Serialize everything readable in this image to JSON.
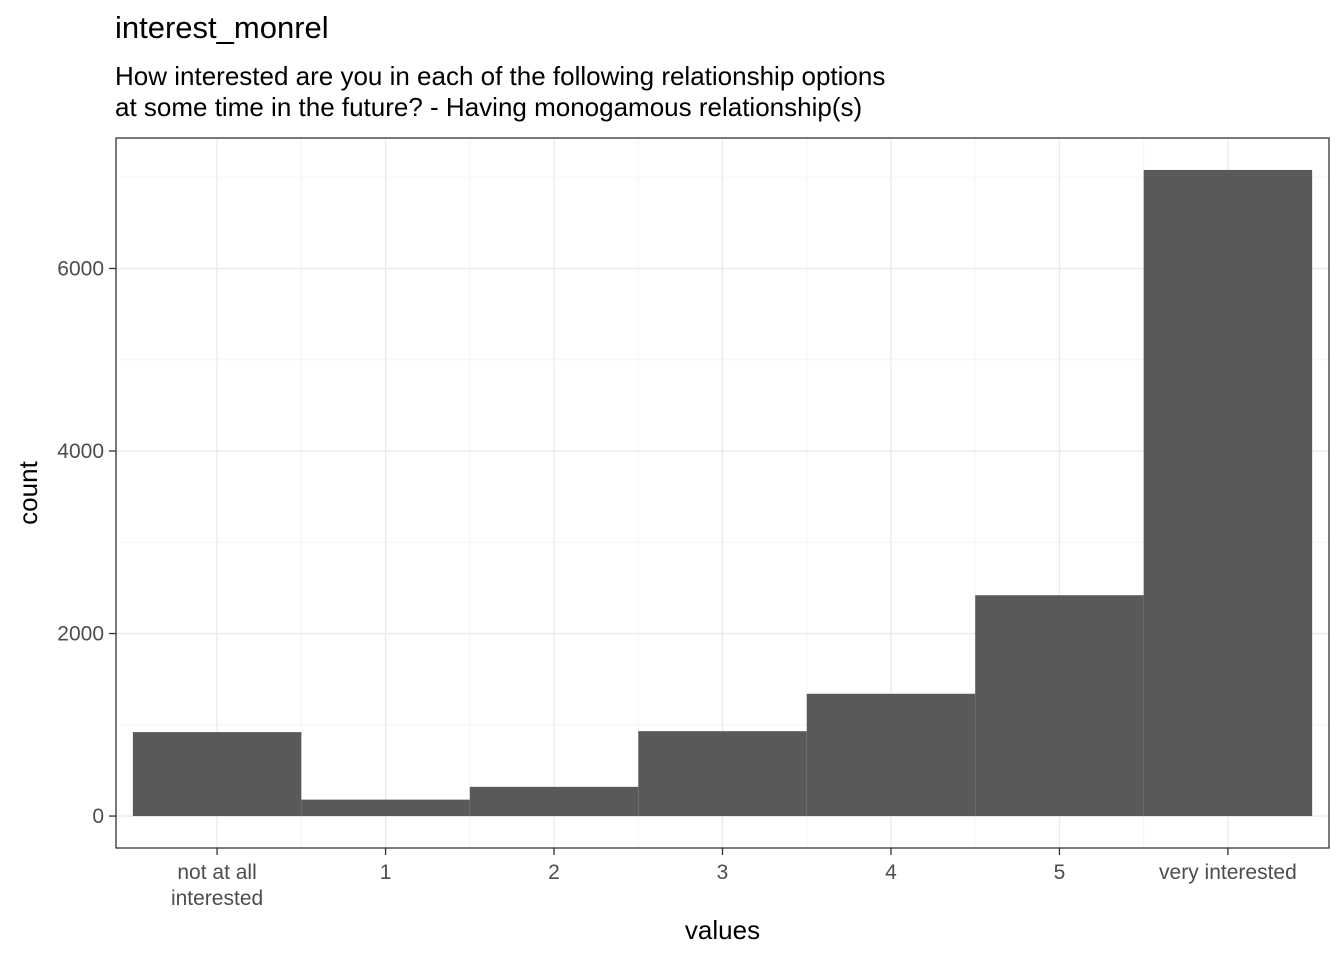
{
  "chart_data": {
    "type": "bar",
    "title": "interest_monrel",
    "subtitle_lines": [
      "How interested are you in each of the following relationship options",
      "at some time in the future? - Having monogamous relationship(s)"
    ],
    "xlabel": "values",
    "ylabel": "count",
    "categories": [
      [
        "not at all",
        "interested"
      ],
      [
        "1"
      ],
      [
        "2"
      ],
      [
        "3"
      ],
      [
        "4"
      ],
      [
        "5"
      ],
      [
        "very interested"
      ]
    ],
    "values": [
      920,
      180,
      320,
      930,
      1340,
      2420,
      7080
    ],
    "ylim": [
      -350,
      7430
    ],
    "y_ticks": [
      0,
      2000,
      4000,
      6000
    ],
    "y_tick_labels": [
      "0",
      "2000",
      "4000",
      "6000"
    ],
    "grid": true,
    "theme": "bw",
    "colors": {
      "bar": "#595959",
      "grid_major": "#ebebeb",
      "grid_minor": "#f5f5f5",
      "border": "#333333",
      "tick_label": "#4d4d4d"
    }
  }
}
